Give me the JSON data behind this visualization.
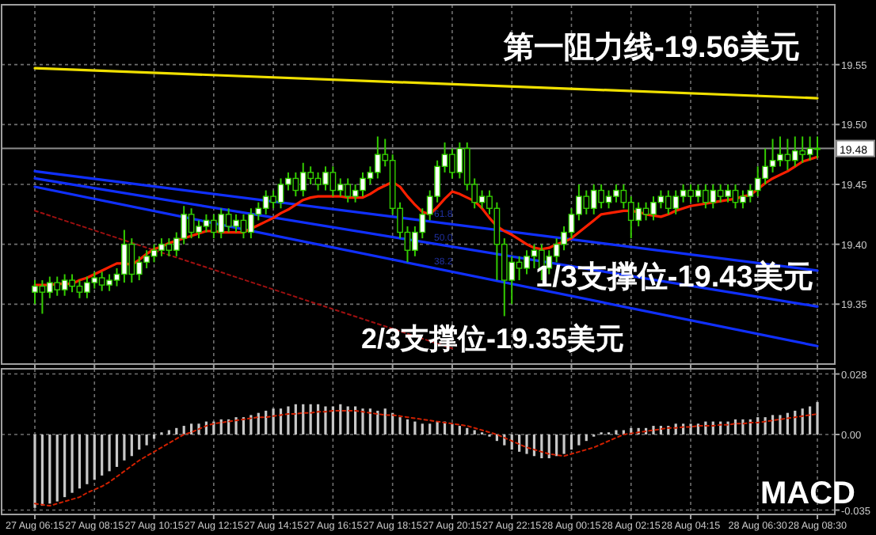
{
  "chart_data": [
    {
      "type": "candlestick",
      "color": "#33cc00",
      "grid": true,
      "tick_labels": "y",
      "categories": [
        "27 Aug 06:15",
        null,
        null,
        null,
        null,
        null,
        null,
        null,
        "27 Aug 08:15",
        null,
        null,
        null,
        null,
        null,
        null,
        null,
        "27 Aug 10:15",
        null,
        null,
        null,
        null,
        null,
        null,
        null,
        "27 Aug 12:15",
        null,
        null,
        null,
        null,
        null,
        null,
        null,
        "27 Aug 14:15",
        null,
        null,
        null,
        null,
        null,
        null,
        null,
        "27 Aug 16:15",
        null,
        null,
        null,
        null,
        null,
        null,
        null,
        "27 Aug 18:15",
        null,
        null,
        null,
        null,
        null,
        null,
        null,
        "27 Aug 20:15",
        null,
        null,
        null,
        null,
        null,
        null,
        null,
        "27 Aug 22:15",
        null,
        null,
        null,
        null,
        null,
        null,
        null,
        "28 Aug 00:15",
        null,
        null,
        null,
        null,
        null,
        null,
        null,
        "28 Aug 02:15",
        null,
        null,
        null,
        null,
        null,
        null,
        null,
        "28 Aug 04:15",
        null,
        null,
        null,
        null,
        null,
        null,
        null,
        null,
        "28 Aug 06:30",
        null,
        null,
        null,
        null,
        null,
        null,
        null,
        "28 Aug 08:30"
      ],
      "ohlc": [
        [
          19.36,
          19.37,
          19.35,
          19.365
        ],
        [
          19.365,
          19.37,
          19.342,
          19.36
        ],
        [
          19.36,
          19.373,
          19.355,
          19.368
        ],
        [
          19.368,
          19.373,
          19.357,
          19.362
        ],
        [
          19.362,
          19.375,
          19.357,
          19.37
        ],
        [
          19.37,
          19.375,
          19.36,
          19.365
        ],
        [
          19.365,
          19.37,
          19.355,
          19.36
        ],
        [
          19.36,
          19.373,
          19.355,
          19.368
        ],
        [
          19.368,
          19.377,
          19.363,
          19.372
        ],
        [
          19.372,
          19.377,
          19.361,
          19.366
        ],
        [
          19.366,
          19.375,
          19.361,
          19.37
        ],
        [
          19.37,
          19.38,
          19.365,
          19.375
        ],
        [
          19.375,
          19.412,
          19.368,
          19.4
        ],
        [
          19.4,
          19.405,
          19.368,
          19.375
        ],
        [
          19.375,
          19.39,
          19.37,
          19.385
        ],
        [
          19.385,
          19.395,
          19.38,
          19.39
        ],
        [
          19.39,
          19.4,
          19.385,
          19.395
        ],
        [
          19.395,
          19.405,
          19.39,
          19.4
        ],
        [
          19.4,
          19.405,
          19.39,
          19.395
        ],
        [
          19.395,
          19.41,
          19.39,
          19.405
        ],
        [
          19.405,
          19.432,
          19.4,
          19.425
        ],
        [
          19.425,
          19.43,
          19.405,
          19.41
        ],
        [
          19.41,
          19.42,
          19.405,
          19.415
        ],
        [
          19.415,
          19.425,
          19.41,
          19.42
        ],
        [
          19.42,
          19.425,
          19.405,
          19.41
        ],
        [
          19.41,
          19.43,
          19.405,
          19.425
        ],
        [
          19.425,
          19.43,
          19.41,
          19.415
        ],
        [
          19.415,
          19.425,
          19.41,
          19.42
        ],
        [
          19.42,
          19.425,
          19.405,
          19.41
        ],
        [
          19.41,
          19.43,
          19.405,
          19.425
        ],
        [
          19.425,
          19.435,
          19.42,
          19.43
        ],
        [
          19.43,
          19.445,
          19.425,
          19.44
        ],
        [
          19.44,
          19.445,
          19.43,
          19.435
        ],
        [
          19.435,
          19.455,
          19.43,
          19.45
        ],
        [
          19.45,
          19.46,
          19.445,
          19.455
        ],
        [
          19.455,
          19.46,
          19.44,
          19.445
        ],
        [
          19.445,
          19.468,
          19.44,
          19.46
        ],
        [
          19.46,
          19.465,
          19.45,
          19.455
        ],
        [
          19.455,
          19.46,
          19.445,
          19.45
        ],
        [
          19.45,
          19.465,
          19.445,
          19.46
        ],
        [
          19.46,
          19.465,
          19.44,
          19.445
        ],
        [
          19.445,
          19.455,
          19.44,
          19.45
        ],
        [
          19.45,
          19.455,
          19.435,
          19.44
        ],
        [
          19.44,
          19.45,
          19.435,
          19.445
        ],
        [
          19.445,
          19.46,
          19.44,
          19.455
        ],
        [
          19.455,
          19.465,
          19.45,
          19.46
        ],
        [
          19.46,
          19.49,
          19.455,
          19.475
        ],
        [
          19.475,
          19.488,
          19.465,
          19.47
        ],
        [
          19.47,
          19.475,
          19.425,
          19.43
        ],
        [
          19.43,
          19.435,
          19.405,
          19.41
        ],
        [
          19.41,
          19.415,
          19.385,
          19.395
        ],
        [
          19.395,
          19.415,
          19.39,
          19.41
        ],
        [
          19.41,
          19.43,
          19.405,
          19.425
        ],
        [
          19.425,
          19.445,
          19.42,
          19.44
        ],
        [
          19.44,
          19.47,
          19.435,
          19.465
        ],
        [
          19.465,
          19.485,
          19.46,
          19.475
        ],
        [
          19.475,
          19.48,
          19.455,
          19.46
        ],
        [
          19.46,
          19.485,
          19.455,
          19.48
        ],
        [
          19.48,
          19.485,
          19.445,
          19.45
        ],
        [
          19.45,
          19.455,
          19.43,
          19.435
        ],
        [
          19.435,
          19.445,
          19.43,
          19.44
        ],
        [
          19.44,
          19.445,
          19.425,
          19.43
        ],
        [
          19.43,
          19.435,
          19.37,
          19.4
        ],
        [
          19.4,
          19.405,
          19.34,
          19.37
        ],
        [
          19.37,
          19.39,
          19.35,
          19.385
        ],
        [
          19.385,
          19.39,
          19.37,
          19.38
        ],
        [
          19.38,
          19.395,
          19.375,
          19.39
        ],
        [
          19.39,
          19.4,
          19.38,
          19.395
        ],
        [
          19.395,
          19.4,
          19.37,
          19.38
        ],
        [
          19.38,
          19.395,
          19.375,
          19.39
        ],
        [
          19.39,
          19.405,
          19.385,
          19.4
        ],
        [
          19.4,
          19.415,
          19.395,
          19.41
        ],
        [
          19.41,
          19.43,
          19.405,
          19.425
        ],
        [
          19.425,
          19.45,
          19.42,
          19.44
        ],
        [
          19.44,
          19.445,
          19.425,
          19.43
        ],
        [
          19.43,
          19.45,
          19.425,
          19.445
        ],
        [
          19.445,
          19.45,
          19.43,
          19.435
        ],
        [
          19.435,
          19.445,
          19.43,
          19.44
        ],
        [
          19.44,
          19.45,
          19.435,
          19.445
        ],
        [
          19.445,
          19.45,
          19.43,
          19.435
        ],
        [
          19.435,
          19.44,
          19.405,
          19.42
        ],
        [
          19.42,
          19.435,
          19.415,
          19.43
        ],
        [
          19.43,
          19.435,
          19.42,
          19.425
        ],
        [
          19.425,
          19.44,
          19.42,
          19.435
        ],
        [
          19.435,
          19.445,
          19.43,
          19.44
        ],
        [
          19.44,
          19.445,
          19.425,
          19.43
        ],
        [
          19.43,
          19.445,
          19.425,
          19.44
        ],
        [
          19.44,
          19.45,
          19.435,
          19.445
        ],
        [
          19.445,
          19.45,
          19.435,
          19.44
        ],
        [
          19.44,
          19.45,
          19.435,
          19.445
        ],
        [
          19.445,
          19.45,
          19.43,
          19.435
        ],
        [
          19.435,
          19.45,
          19.43,
          19.445
        ],
        [
          19.445,
          19.45,
          19.435,
          19.44
        ],
        [
          19.44,
          19.45,
          19.435,
          19.445
        ],
        [
          19.445,
          19.45,
          19.43,
          19.435
        ],
        [
          19.435,
          19.445,
          19.43,
          19.44
        ],
        [
          19.44,
          19.45,
          19.435,
          19.445
        ],
        [
          19.445,
          19.465,
          19.44,
          19.455
        ],
        [
          19.455,
          19.48,
          19.45,
          19.465
        ],
        [
          19.465,
          19.488,
          19.46,
          19.47
        ],
        [
          19.47,
          19.49,
          19.465,
          19.475
        ],
        [
          19.475,
          19.488,
          19.462,
          19.47
        ],
        [
          19.47,
          19.49,
          19.465,
          19.478
        ],
        [
          19.478,
          19.49,
          19.468,
          19.475
        ],
        [
          19.475,
          19.49,
          19.47,
          19.48
        ],
        [
          19.48,
          19.49,
          19.472,
          19.48
        ]
      ],
      "series": [
        {
          "type": "line",
          "color": "#f0e000",
          "x": [
            "27 Aug 06:15",
            "28 Aug 08:30"
          ],
          "values": [
            19.547,
            19.522
          ]
        },
        {
          "type": "line",
          "color": "#1030ff",
          "x": [
            "27 Aug 06:15",
            "28 Aug 08:30"
          ],
          "values": [
            19.461,
            19.378
          ]
        },
        {
          "type": "line",
          "color": "#1030ff",
          "x": [
            "27 Aug 06:15",
            "28 Aug 08:30"
          ],
          "values": [
            19.455,
            19.348
          ]
        },
        {
          "type": "line",
          "color": "#1030ff",
          "x": [
            "27 Aug 06:15",
            "28 Aug 08:30"
          ],
          "values": [
            19.448,
            19.315
          ]
        },
        {
          "type": "line",
          "color": "#a01010",
          "line_style": "dotted",
          "x": [
            "27 Aug 06:15",
            "27 Aug 20:15"
          ],
          "values": [
            19.428,
            19.313
          ]
        },
        {
          "type": "line",
          "color": "#ff2000",
          "values": [
            19.366,
            19.366,
            19.366,
            19.367,
            19.367,
            19.367,
            19.37,
            19.372,
            19.375,
            19.378,
            19.381,
            19.384,
            19.384,
            19.383,
            19.387,
            19.392,
            19.396,
            19.398,
            19.401,
            19.403,
            19.405,
            19.407,
            19.409,
            19.411,
            19.411,
            19.41,
            19.41,
            19.41,
            19.41,
            19.413,
            19.416,
            19.419,
            19.422,
            19.426,
            19.429,
            19.433,
            19.437,
            19.439,
            19.44,
            19.44,
            19.44,
            19.44,
            19.439,
            19.439,
            19.439,
            19.442,
            19.446,
            19.449,
            19.452,
            19.448,
            19.44,
            19.433,
            19.427,
            19.425,
            19.431,
            19.438,
            19.444,
            19.442,
            19.439,
            19.436,
            19.43,
            19.422,
            19.415,
            19.411,
            19.408,
            19.404,
            19.4,
            19.397,
            19.396,
            19.397,
            19.4,
            19.402,
            19.405,
            19.41,
            19.415,
            19.42,
            19.425,
            19.426,
            19.427,
            19.428,
            19.428,
            19.427,
            19.425,
            19.424,
            19.423,
            19.425,
            19.428,
            19.43,
            19.432,
            19.433,
            19.434,
            19.435,
            19.436,
            19.437,
            19.438,
            19.44,
            19.441,
            19.446,
            19.451,
            19.455,
            19.458,
            19.461,
            19.465,
            19.469,
            19.471,
            19.473
          ]
        }
      ],
      "ylim": [
        19.3,
        19.6
      ],
      "yticks": [
        19.55,
        {
          "value": 19.5,
          "label": "19.50"
        },
        19.45,
        {
          "value": 19.4,
          "label": "19.40"
        },
        19.35
      ],
      "ref_lines": [
        {
          "axis": "y",
          "value": 19.48,
          "label": "19.48",
          "color": "#8c8c8c"
        }
      ],
      "annotations": [
        "第一阻力线-19.56美元",
        "1/3支撑位-19.43美元",
        "2/3支撑位-19.35美元",
        "61.8",
        "50.0",
        "38.2"
      ]
    },
    {
      "type": "bar",
      "grid": true,
      "categories": [
        "27 Aug 06:15",
        null,
        null,
        null,
        null,
        null,
        null,
        null,
        "27 Aug 08:15",
        null,
        null,
        null,
        null,
        null,
        null,
        null,
        "27 Aug 10:15",
        null,
        null,
        null,
        null,
        null,
        null,
        null,
        "27 Aug 12:15",
        null,
        null,
        null,
        null,
        null,
        null,
        null,
        "27 Aug 14:15",
        null,
        null,
        null,
        null,
        null,
        null,
        null,
        "27 Aug 16:15",
        null,
        null,
        null,
        null,
        null,
        null,
        null,
        "27 Aug 18:15",
        null,
        null,
        null,
        null,
        null,
        null,
        null,
        "27 Aug 20:15",
        null,
        null,
        null,
        null,
        null,
        null,
        null,
        "27 Aug 22:15",
        null,
        null,
        null,
        null,
        null,
        null,
        null,
        "28 Aug 00:15",
        null,
        null,
        null,
        null,
        null,
        null,
        null,
        "28 Aug 02:15",
        null,
        null,
        null,
        null,
        null,
        null,
        null,
        "28 Aug 04:15",
        null,
        null,
        null,
        null,
        null,
        null,
        null,
        null,
        "28 Aug 06:30",
        null,
        null,
        null,
        null,
        null,
        null,
        null,
        "28 Aug 08:30"
      ],
      "series": [
        {
          "type": "bar",
          "color": "#c8c8c8",
          "values": [
            -0.034,
            -0.033,
            -0.032,
            -0.031,
            -0.029,
            -0.027,
            -0.025,
            -0.023,
            -0.021,
            -0.019,
            -0.017,
            -0.015,
            -0.012,
            -0.01,
            -0.007,
            -0.005,
            -0.002,
            0.001,
            0.002,
            0.003,
            0.004,
            0.005,
            0.005,
            0.006,
            0.006,
            0.007,
            0.007,
            0.008,
            0.008,
            0.009,
            0.01,
            0.011,
            0.012,
            0.012,
            0.013,
            0.014,
            0.014,
            0.014,
            0.014,
            0.013,
            0.013,
            0.014,
            0.013,
            0.013,
            0.012,
            0.012,
            0.011,
            0.012,
            0.01,
            0.008,
            0.007,
            0.006,
            0.005,
            0.005,
            0.006,
            0.006,
            0.005,
            0.004,
            0.003,
            0.002,
            0.001,
            -0.001,
            -0.003,
            -0.005,
            -0.007,
            -0.008,
            -0.009,
            -0.01,
            -0.011,
            -0.011,
            -0.01,
            -0.009,
            -0.007,
            -0.005,
            -0.003,
            -0.001,
            0.001,
            0.001,
            0.002,
            0.002,
            0.003,
            0.003,
            0.003,
            0.004,
            0.004,
            0.004,
            0.005,
            0.005,
            0.005,
            0.005,
            0.006,
            0.006,
            0.006,
            0.006,
            0.007,
            0.007,
            0.007,
            0.008,
            0.008,
            0.009,
            0.009,
            0.01,
            0.011,
            0.012,
            0.013,
            0.015
          ]
        },
        {
          "type": "line",
          "color": "#d02000",
          "line_style": "dotted",
          "values": [
            -0.032,
            -0.0325,
            -0.033,
            -0.032,
            -0.031,
            -0.03,
            -0.029,
            -0.027,
            -0.0255,
            -0.024,
            -0.022,
            -0.0195,
            -0.017,
            -0.0145,
            -0.012,
            -0.01,
            -0.008,
            -0.006,
            -0.004,
            -0.002,
            0.0,
            0.001,
            0.0025,
            0.004,
            0.005,
            0.0055,
            0.006,
            0.0065,
            0.007,
            0.0075,
            0.008,
            0.008,
            0.0085,
            0.009,
            0.0095,
            0.0095,
            0.01,
            0.01,
            0.0105,
            0.0105,
            0.011,
            0.011,
            0.011,
            0.011,
            0.0105,
            0.01,
            0.0095,
            0.009,
            0.009,
            0.0085,
            0.008,
            0.0075,
            0.007,
            0.0065,
            0.006,
            0.0055,
            0.005,
            0.0045,
            0.004,
            0.003,
            0.002,
            0.001,
            0.0,
            -0.0015,
            -0.003,
            -0.0045,
            -0.006,
            -0.007,
            -0.008,
            -0.009,
            -0.0095,
            -0.01,
            -0.009,
            -0.008,
            -0.007,
            -0.006,
            -0.0045,
            -0.003,
            -0.0015,
            0.0,
            0.0005,
            0.001,
            0.0015,
            0.002,
            0.0025,
            0.003,
            0.003,
            0.0035,
            0.0035,
            0.004,
            0.004,
            0.004,
            0.0045,
            0.0045,
            0.005,
            0.005,
            0.0055,
            0.0055,
            0.006,
            0.0065,
            0.007,
            0.0075,
            0.008,
            0.0085,
            0.009,
            0.0095
          ]
        }
      ],
      "ylim": [
        -0.037,
        0.0304
      ],
      "yticks": [
        0.028,
        {
          "value": 0,
          "label": "0.00"
        },
        -0.035
      ],
      "annotations": [
        "MACD"
      ]
    }
  ]
}
